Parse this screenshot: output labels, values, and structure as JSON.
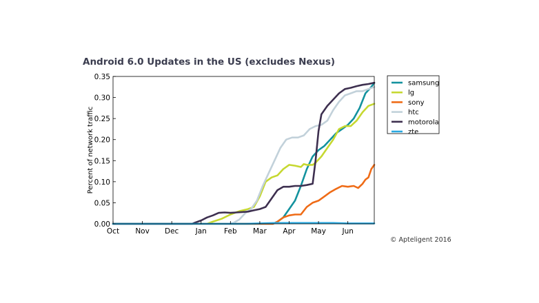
{
  "chart_data": {
    "type": "line",
    "title": "Android 6.0 Updates in the US (excludes Nexus)",
    "xlabel": "",
    "ylabel": "Percent of network traffic",
    "x_tick_labels": [
      "Oct",
      "Nov",
      "Dec",
      "Jan",
      "Feb",
      "Mar",
      "Apr",
      "May",
      "Jun"
    ],
    "x_tick_positions": [
      0,
      1,
      2,
      3,
      4,
      5,
      6,
      7,
      8
    ],
    "xlim": [
      0,
      8.9
    ],
    "ylim": [
      0,
      0.35
    ],
    "y_ticks": [
      "0.00",
      "0.05",
      "0.10",
      "0.15",
      "0.20",
      "0.25",
      "0.30",
      "0.35"
    ],
    "grid": false,
    "legend_position": "right",
    "series": [
      {
        "name": "samsung",
        "color": "#13929e",
        "points": [
          [
            0,
            0
          ],
          [
            5.45,
            0
          ],
          [
            5.6,
            0.005
          ],
          [
            5.8,
            0.015
          ],
          [
            6.0,
            0.035
          ],
          [
            6.2,
            0.055
          ],
          [
            6.4,
            0.09
          ],
          [
            6.6,
            0.13
          ],
          [
            6.8,
            0.16
          ],
          [
            7.0,
            0.175
          ],
          [
            7.2,
            0.185
          ],
          [
            7.4,
            0.2
          ],
          [
            7.6,
            0.215
          ],
          [
            7.8,
            0.225
          ],
          [
            8.0,
            0.235
          ],
          [
            8.2,
            0.25
          ],
          [
            8.4,
            0.275
          ],
          [
            8.6,
            0.31
          ],
          [
            8.8,
            0.325
          ],
          [
            8.9,
            0.335
          ]
        ]
      },
      {
        "name": "lg",
        "color": "#c6d830",
        "points": [
          [
            0,
            0
          ],
          [
            3.2,
            0
          ],
          [
            3.4,
            0.005
          ],
          [
            3.7,
            0.012
          ],
          [
            4.0,
            0.022
          ],
          [
            4.3,
            0.03
          ],
          [
            4.6,
            0.035
          ],
          [
            4.8,
            0.04
          ],
          [
            5.0,
            0.065
          ],
          [
            5.2,
            0.1
          ],
          [
            5.4,
            0.11
          ],
          [
            5.6,
            0.115
          ],
          [
            5.8,
            0.13
          ],
          [
            6.0,
            0.14
          ],
          [
            6.2,
            0.138
          ],
          [
            6.4,
            0.135
          ],
          [
            6.5,
            0.142
          ],
          [
            6.6,
            0.14
          ],
          [
            6.8,
            0.14
          ],
          [
            6.9,
            0.145
          ],
          [
            7.1,
            0.16
          ],
          [
            7.3,
            0.18
          ],
          [
            7.5,
            0.2
          ],
          [
            7.7,
            0.225
          ],
          [
            7.9,
            0.232
          ],
          [
            8.1,
            0.232
          ],
          [
            8.3,
            0.245
          ],
          [
            8.5,
            0.265
          ],
          [
            8.7,
            0.28
          ],
          [
            8.9,
            0.285
          ]
        ]
      },
      {
        "name": "sony",
        "color": "#ef6b16",
        "points": [
          [
            0,
            0
          ],
          [
            5.45,
            0
          ],
          [
            5.6,
            0.005
          ],
          [
            5.8,
            0.015
          ],
          [
            6.0,
            0.02
          ],
          [
            6.2,
            0.022
          ],
          [
            6.4,
            0.022
          ],
          [
            6.6,
            0.04
          ],
          [
            6.8,
            0.05
          ],
          [
            7.0,
            0.055
          ],
          [
            7.2,
            0.065
          ],
          [
            7.4,
            0.075
          ],
          [
            7.6,
            0.083
          ],
          [
            7.8,
            0.09
          ],
          [
            8.0,
            0.088
          ],
          [
            8.2,
            0.09
          ],
          [
            8.35,
            0.085
          ],
          [
            8.5,
            0.095
          ],
          [
            8.6,
            0.105
          ],
          [
            8.7,
            0.11
          ],
          [
            8.8,
            0.13
          ],
          [
            8.9,
            0.14
          ]
        ]
      },
      {
        "name": "htc",
        "color": "#c2d1da",
        "points": [
          [
            0,
            0
          ],
          [
            3.9,
            0
          ],
          [
            4.1,
            0.002
          ],
          [
            4.3,
            0.01
          ],
          [
            4.5,
            0.025
          ],
          [
            4.7,
            0.035
          ],
          [
            4.9,
            0.055
          ],
          [
            5.1,
            0.09
          ],
          [
            5.3,
            0.12
          ],
          [
            5.5,
            0.15
          ],
          [
            5.7,
            0.18
          ],
          [
            5.9,
            0.2
          ],
          [
            6.1,
            0.205
          ],
          [
            6.3,
            0.205
          ],
          [
            6.5,
            0.21
          ],
          [
            6.7,
            0.225
          ],
          [
            6.9,
            0.232
          ],
          [
            7.1,
            0.235
          ],
          [
            7.3,
            0.245
          ],
          [
            7.5,
            0.27
          ],
          [
            7.7,
            0.29
          ],
          [
            7.9,
            0.305
          ],
          [
            8.1,
            0.31
          ],
          [
            8.3,
            0.315
          ],
          [
            8.5,
            0.315
          ],
          [
            8.7,
            0.32
          ],
          [
            8.9,
            0.325
          ]
        ]
      },
      {
        "name": "motorola",
        "color": "#3d2f4f",
        "points": [
          [
            0,
            0
          ],
          [
            2.7,
            0
          ],
          [
            2.8,
            0.003
          ],
          [
            3.0,
            0.008
          ],
          [
            3.2,
            0.015
          ],
          [
            3.4,
            0.02
          ],
          [
            3.6,
            0.026
          ],
          [
            3.8,
            0.027
          ],
          [
            4.0,
            0.026
          ],
          [
            4.2,
            0.027
          ],
          [
            4.4,
            0.028
          ],
          [
            4.6,
            0.029
          ],
          [
            4.8,
            0.032
          ],
          [
            5.0,
            0.035
          ],
          [
            5.2,
            0.04
          ],
          [
            5.4,
            0.06
          ],
          [
            5.6,
            0.08
          ],
          [
            5.8,
            0.088
          ],
          [
            6.0,
            0.088
          ],
          [
            6.2,
            0.09
          ],
          [
            6.4,
            0.09
          ],
          [
            6.6,
            0.092
          ],
          [
            6.8,
            0.095
          ],
          [
            6.9,
            0.15
          ],
          [
            7.0,
            0.22
          ],
          [
            7.1,
            0.26
          ],
          [
            7.3,
            0.28
          ],
          [
            7.5,
            0.295
          ],
          [
            7.7,
            0.31
          ],
          [
            7.9,
            0.32
          ],
          [
            8.1,
            0.323
          ],
          [
            8.3,
            0.327
          ],
          [
            8.5,
            0.33
          ],
          [
            8.7,
            0.332
          ],
          [
            8.9,
            0.335
          ]
        ]
      },
      {
        "name": "zte",
        "color": "#29a8e0",
        "points": [
          [
            0,
            0
          ],
          [
            4.5,
            0
          ],
          [
            5.0,
            0.001
          ],
          [
            5.5,
            0.002
          ],
          [
            6.0,
            0.002
          ],
          [
            6.5,
            0.002
          ],
          [
            7.0,
            0.002
          ],
          [
            7.5,
            0.002
          ],
          [
            8.0,
            0.001
          ],
          [
            8.5,
            0.001
          ],
          [
            8.9,
            0.001
          ]
        ]
      }
    ]
  },
  "credit": "© Apteligent 2016"
}
